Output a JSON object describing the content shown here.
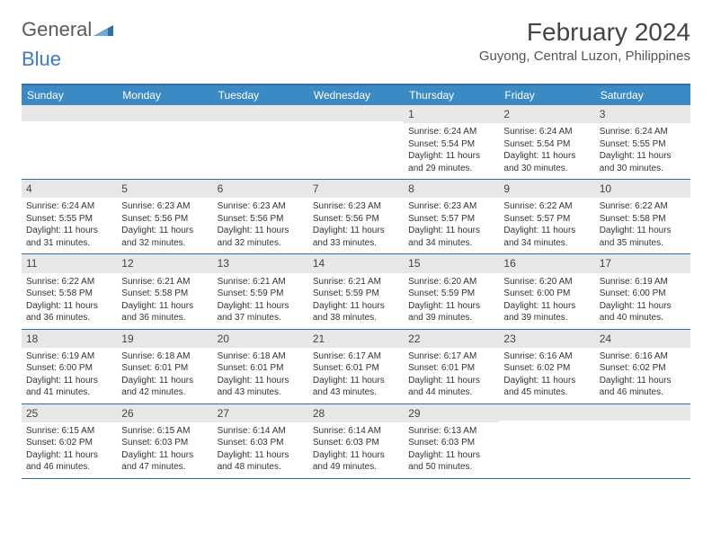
{
  "logo": {
    "text1": "General",
    "text2": "Blue"
  },
  "title": "February 2024",
  "location": "Guyong, Central Luzon, Philippines",
  "header_bg": "#3b8ac4",
  "border_color": "#2e6fa8",
  "daynum_bg": "#e7e7e7",
  "dow": [
    "Sunday",
    "Monday",
    "Tuesday",
    "Wednesday",
    "Thursday",
    "Friday",
    "Saturday"
  ],
  "weeks": [
    [
      null,
      null,
      null,
      null,
      {
        "n": "1",
        "sr": "Sunrise: 6:24 AM",
        "ss": "Sunset: 5:54 PM",
        "dl": "Daylight: 11 hours and 29 minutes."
      },
      {
        "n": "2",
        "sr": "Sunrise: 6:24 AM",
        "ss": "Sunset: 5:54 PM",
        "dl": "Daylight: 11 hours and 30 minutes."
      },
      {
        "n": "3",
        "sr": "Sunrise: 6:24 AM",
        "ss": "Sunset: 5:55 PM",
        "dl": "Daylight: 11 hours and 30 minutes."
      }
    ],
    [
      {
        "n": "4",
        "sr": "Sunrise: 6:24 AM",
        "ss": "Sunset: 5:55 PM",
        "dl": "Daylight: 11 hours and 31 minutes."
      },
      {
        "n": "5",
        "sr": "Sunrise: 6:23 AM",
        "ss": "Sunset: 5:56 PM",
        "dl": "Daylight: 11 hours and 32 minutes."
      },
      {
        "n": "6",
        "sr": "Sunrise: 6:23 AM",
        "ss": "Sunset: 5:56 PM",
        "dl": "Daylight: 11 hours and 32 minutes."
      },
      {
        "n": "7",
        "sr": "Sunrise: 6:23 AM",
        "ss": "Sunset: 5:56 PM",
        "dl": "Daylight: 11 hours and 33 minutes."
      },
      {
        "n": "8",
        "sr": "Sunrise: 6:23 AM",
        "ss": "Sunset: 5:57 PM",
        "dl": "Daylight: 11 hours and 34 minutes."
      },
      {
        "n": "9",
        "sr": "Sunrise: 6:22 AM",
        "ss": "Sunset: 5:57 PM",
        "dl": "Daylight: 11 hours and 34 minutes."
      },
      {
        "n": "10",
        "sr": "Sunrise: 6:22 AM",
        "ss": "Sunset: 5:58 PM",
        "dl": "Daylight: 11 hours and 35 minutes."
      }
    ],
    [
      {
        "n": "11",
        "sr": "Sunrise: 6:22 AM",
        "ss": "Sunset: 5:58 PM",
        "dl": "Daylight: 11 hours and 36 minutes."
      },
      {
        "n": "12",
        "sr": "Sunrise: 6:21 AM",
        "ss": "Sunset: 5:58 PM",
        "dl": "Daylight: 11 hours and 36 minutes."
      },
      {
        "n": "13",
        "sr": "Sunrise: 6:21 AM",
        "ss": "Sunset: 5:59 PM",
        "dl": "Daylight: 11 hours and 37 minutes."
      },
      {
        "n": "14",
        "sr": "Sunrise: 6:21 AM",
        "ss": "Sunset: 5:59 PM",
        "dl": "Daylight: 11 hours and 38 minutes."
      },
      {
        "n": "15",
        "sr": "Sunrise: 6:20 AM",
        "ss": "Sunset: 5:59 PM",
        "dl": "Daylight: 11 hours and 39 minutes."
      },
      {
        "n": "16",
        "sr": "Sunrise: 6:20 AM",
        "ss": "Sunset: 6:00 PM",
        "dl": "Daylight: 11 hours and 39 minutes."
      },
      {
        "n": "17",
        "sr": "Sunrise: 6:19 AM",
        "ss": "Sunset: 6:00 PM",
        "dl": "Daylight: 11 hours and 40 minutes."
      }
    ],
    [
      {
        "n": "18",
        "sr": "Sunrise: 6:19 AM",
        "ss": "Sunset: 6:00 PM",
        "dl": "Daylight: 11 hours and 41 minutes."
      },
      {
        "n": "19",
        "sr": "Sunrise: 6:18 AM",
        "ss": "Sunset: 6:01 PM",
        "dl": "Daylight: 11 hours and 42 minutes."
      },
      {
        "n": "20",
        "sr": "Sunrise: 6:18 AM",
        "ss": "Sunset: 6:01 PM",
        "dl": "Daylight: 11 hours and 43 minutes."
      },
      {
        "n": "21",
        "sr": "Sunrise: 6:17 AM",
        "ss": "Sunset: 6:01 PM",
        "dl": "Daylight: 11 hours and 43 minutes."
      },
      {
        "n": "22",
        "sr": "Sunrise: 6:17 AM",
        "ss": "Sunset: 6:01 PM",
        "dl": "Daylight: 11 hours and 44 minutes."
      },
      {
        "n": "23",
        "sr": "Sunrise: 6:16 AM",
        "ss": "Sunset: 6:02 PM",
        "dl": "Daylight: 11 hours and 45 minutes."
      },
      {
        "n": "24",
        "sr": "Sunrise: 6:16 AM",
        "ss": "Sunset: 6:02 PM",
        "dl": "Daylight: 11 hours and 46 minutes."
      }
    ],
    [
      {
        "n": "25",
        "sr": "Sunrise: 6:15 AM",
        "ss": "Sunset: 6:02 PM",
        "dl": "Daylight: 11 hours and 46 minutes."
      },
      {
        "n": "26",
        "sr": "Sunrise: 6:15 AM",
        "ss": "Sunset: 6:03 PM",
        "dl": "Daylight: 11 hours and 47 minutes."
      },
      {
        "n": "27",
        "sr": "Sunrise: 6:14 AM",
        "ss": "Sunset: 6:03 PM",
        "dl": "Daylight: 11 hours and 48 minutes."
      },
      {
        "n": "28",
        "sr": "Sunrise: 6:14 AM",
        "ss": "Sunset: 6:03 PM",
        "dl": "Daylight: 11 hours and 49 minutes."
      },
      {
        "n": "29",
        "sr": "Sunrise: 6:13 AM",
        "ss": "Sunset: 6:03 PM",
        "dl": "Daylight: 11 hours and 50 minutes."
      },
      null,
      null
    ]
  ]
}
